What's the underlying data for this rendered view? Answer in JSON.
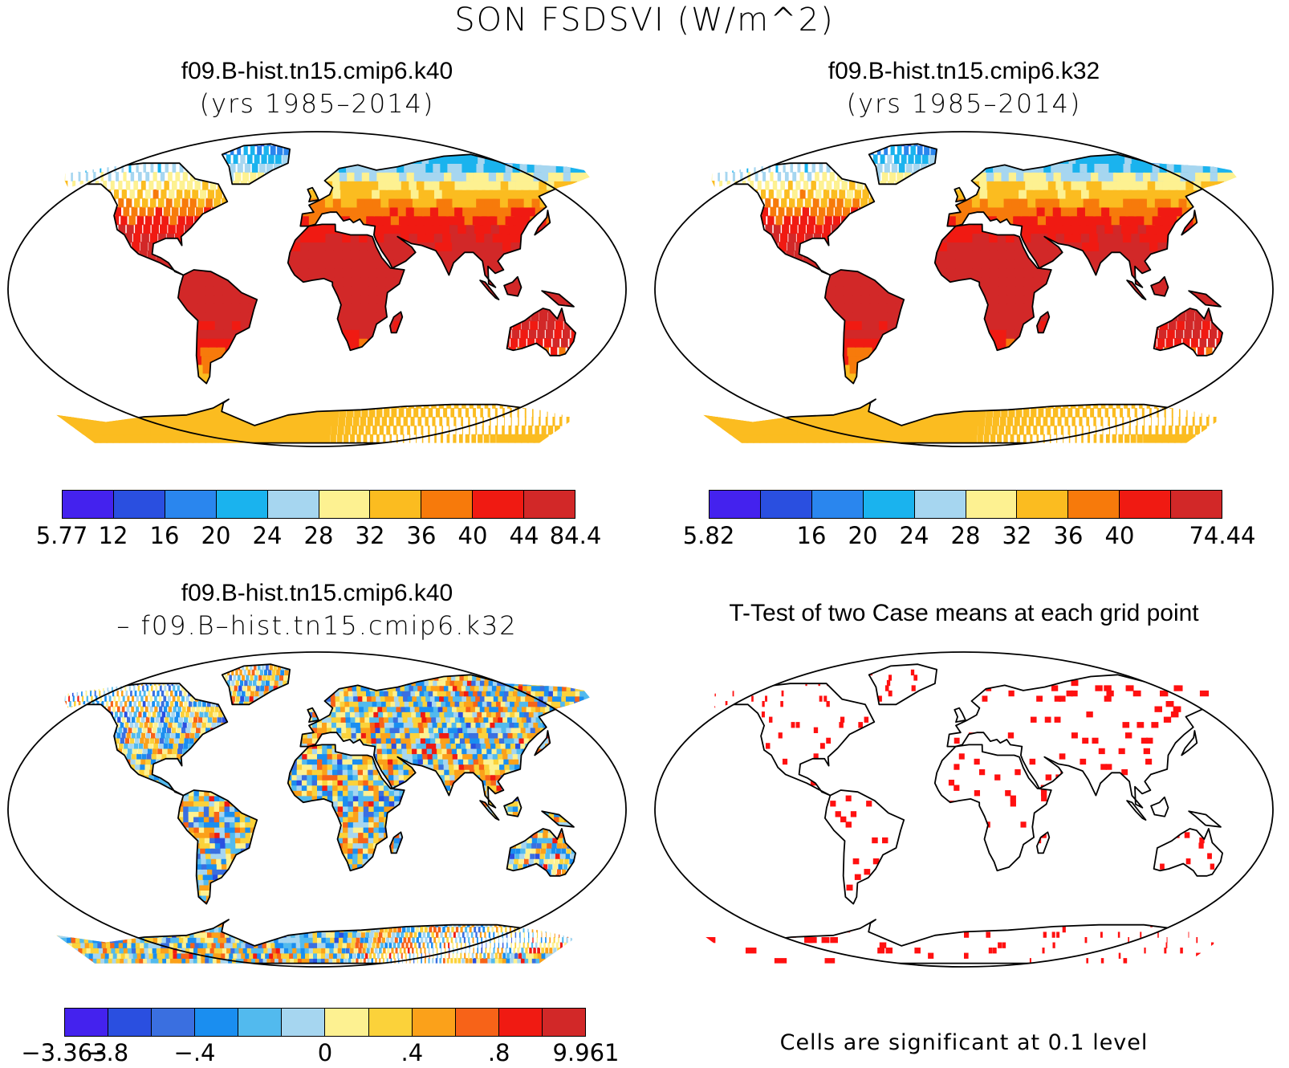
{
  "figure": {
    "title": "SON FSDSVI (W/m^2)"
  },
  "panels": [
    {
      "id": "case1",
      "title": "f09.B-hist.tn15.cmip6.k40",
      "subtitle": "(yrs 1985–2014)",
      "colorbar": {
        "colors": [
          "#4422ee",
          "#2a4fe0",
          "#2a86ee",
          "#1ab3ee",
          "#a6d6f0",
          "#fdf191",
          "#fbbc20",
          "#f77a0b",
          "#f01a12",
          "#d22828"
        ],
        "labels": [
          "5.77",
          "12",
          "16",
          "20",
          "24",
          "28",
          "32",
          "36",
          "40",
          "44",
          "84.4"
        ]
      }
    },
    {
      "id": "case2",
      "title": "f09.B-hist.tn15.cmip6.k32",
      "subtitle": "(yrs 1985–2014)",
      "colorbar": {
        "colors": [
          "#4422ee",
          "#2a4fe0",
          "#2a86ee",
          "#1ab3ee",
          "#a6d6f0",
          "#fdf191",
          "#fbbc20",
          "#f77a0b",
          "#f01a12",
          "#d22828"
        ],
        "labels": [
          "5.82",
          "",
          "16",
          "20",
          "24",
          "28",
          "32",
          "36",
          "40",
          "",
          "74.44"
        ]
      }
    },
    {
      "id": "diff",
      "title": "f09.B-hist.tn15.cmip6.k40",
      "subtitle": "– f09.B–hist.tn15.cmip6.k32",
      "colorbar": {
        "colors": [
          "#4422ee",
          "#2a4fe0",
          "#3a6fe0",
          "#1a8ef0",
          "#52baee",
          "#a6d6f0",
          "#fdf191",
          "#fbd23a",
          "#fba11a",
          "#f76318",
          "#f01a12",
          "#d22828"
        ],
        "labels": [
          "−3.363",
          "−.8",
          "",
          "−.4",
          "",
          "",
          "0",
          "",
          ".4",
          "",
          ".8",
          "",
          "9.961"
        ]
      }
    },
    {
      "id": "ttest",
      "title": "T-Test of two Case means at each grid point",
      "note": "Cells are significant at 0.1 level"
    }
  ]
}
